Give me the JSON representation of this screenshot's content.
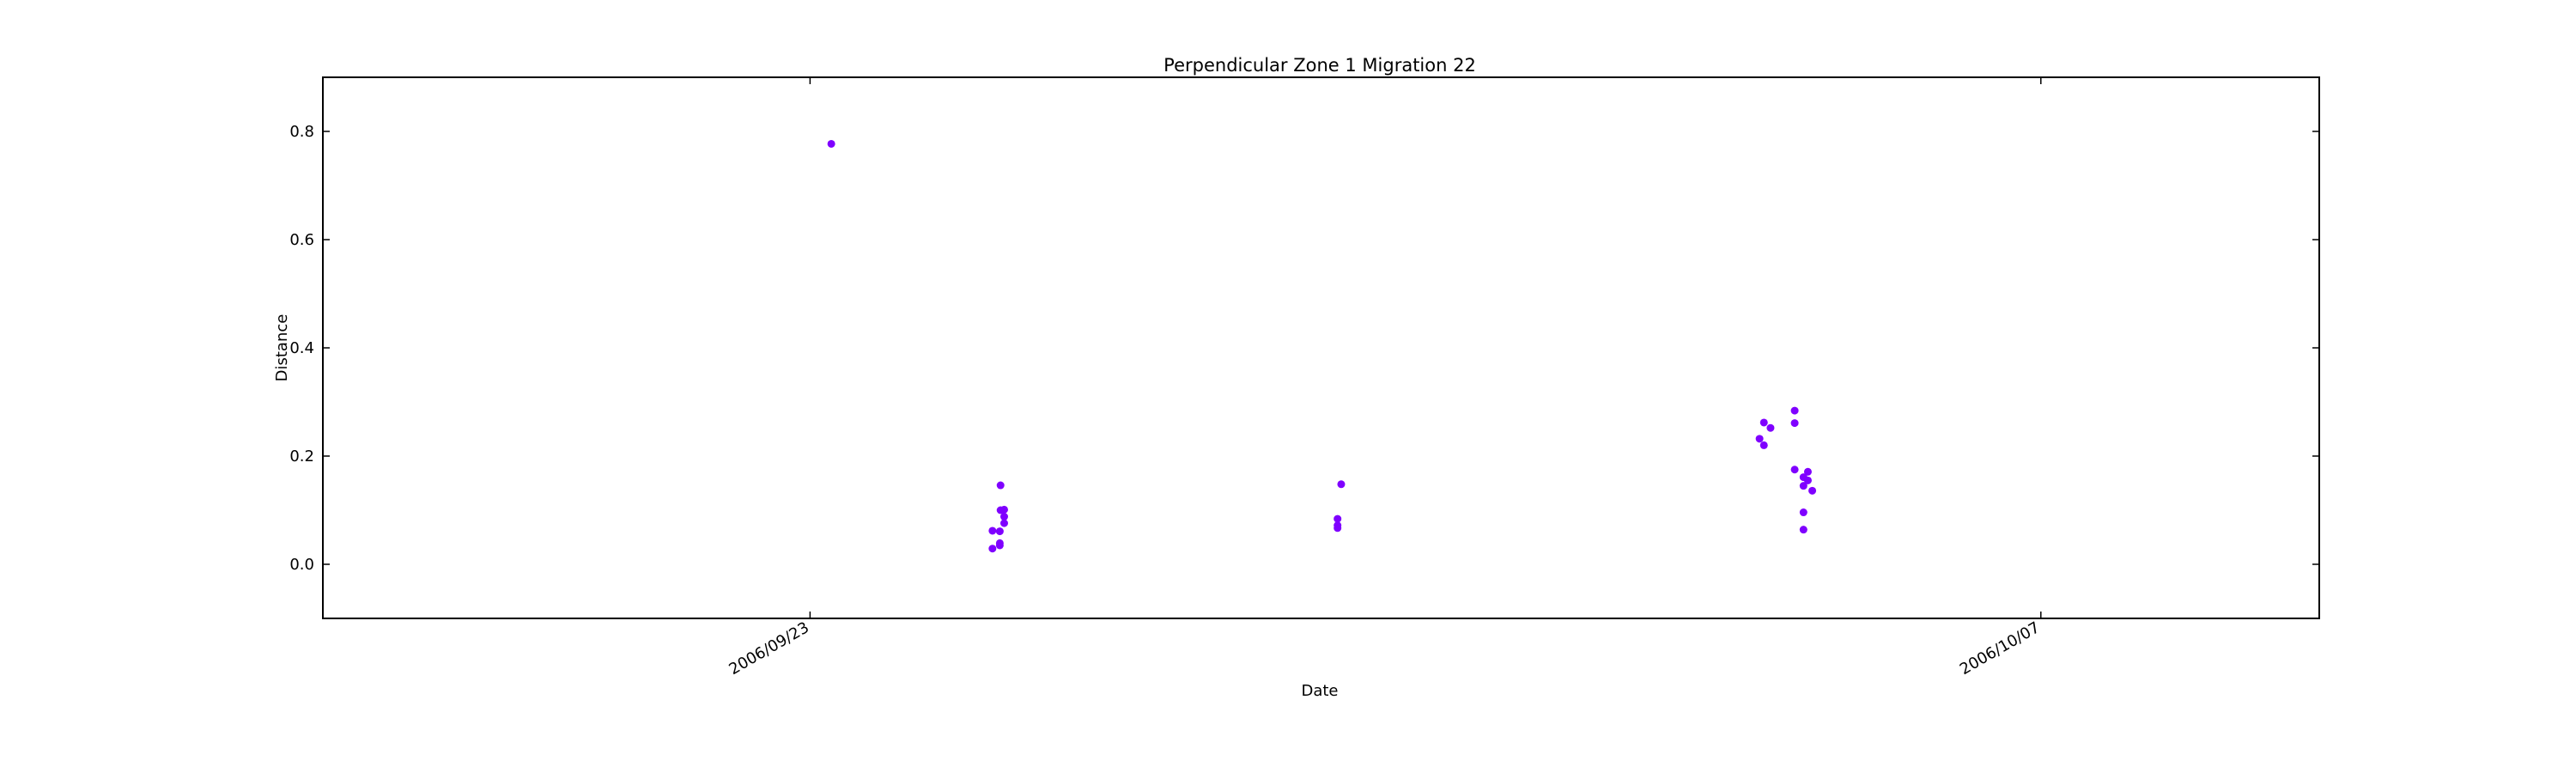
{
  "chart_data": {
    "type": "scatter",
    "title": "Perpendicular Zone 1 Migration 22",
    "xlabel": "Date",
    "ylabel": "Distance",
    "x_axis_type": "date",
    "xlim": [
      "2006-09-17 11:00",
      "2006-10-10 04:00"
    ],
    "ylim": [
      -0.1,
      0.9
    ],
    "xticks": [
      "2006-09-23",
      "2006-10-07"
    ],
    "xtick_labels": [
      "2006/09/23",
      "2006/10/07"
    ],
    "xtick_rotation": 30,
    "yticks": [
      0.0,
      0.2,
      0.4,
      0.6,
      0.8
    ],
    "ytick_labels": [
      "0.0",
      "0.2",
      "0.4",
      "0.6",
      "0.8"
    ],
    "grid": false,
    "legend": "none",
    "marker_color": "#7f00ff",
    "series": [
      {
        "points": [
          {
            "x": "2006-09-23 05:48",
            "y": 0.777
          },
          {
            "x": "2006-09-25 01:48",
            "y": 0.029
          },
          {
            "x": "2006-09-25 01:48",
            "y": 0.062
          },
          {
            "x": "2006-09-25 03:48",
            "y": 0.035
          },
          {
            "x": "2006-09-25 03:48",
            "y": 0.039
          },
          {
            "x": "2006-09-25 03:48",
            "y": 0.061
          },
          {
            "x": "2006-09-25 04:00",
            "y": 0.146
          },
          {
            "x": "2006-09-25 04:00",
            "y": 0.1
          },
          {
            "x": "2006-09-25 05:00",
            "y": 0.076
          },
          {
            "x": "2006-09-25 05:00",
            "y": 0.088
          },
          {
            "x": "2006-09-25 05:00",
            "y": 0.101
          },
          {
            "x": "2006-09-29 01:00",
            "y": 0.148
          },
          {
            "x": "2006-09-29 00:00",
            "y": 0.084
          },
          {
            "x": "2006-09-29 00:00",
            "y": 0.067
          },
          {
            "x": "2006-09-29 00:00",
            "y": 0.072
          },
          {
            "x": "2006-10-03 19:12",
            "y": 0.232
          },
          {
            "x": "2006-10-03 20:24",
            "y": 0.262
          },
          {
            "x": "2006-10-03 20:24",
            "y": 0.22
          },
          {
            "x": "2006-10-03 22:12",
            "y": 0.252
          },
          {
            "x": "2006-10-04 04:48",
            "y": 0.284
          },
          {
            "x": "2006-10-04 04:48",
            "y": 0.261
          },
          {
            "x": "2006-10-04 04:48",
            "y": 0.175
          },
          {
            "x": "2006-10-04 07:12",
            "y": 0.161
          },
          {
            "x": "2006-10-04 07:12",
            "y": 0.145
          },
          {
            "x": "2006-10-04 07:12",
            "y": 0.096
          },
          {
            "x": "2006-10-04 07:12",
            "y": 0.064
          },
          {
            "x": "2006-10-04 08:24",
            "y": 0.171
          },
          {
            "x": "2006-10-04 08:24",
            "y": 0.155
          },
          {
            "x": "2006-10-04 09:36",
            "y": 0.136
          }
        ]
      }
    ]
  }
}
